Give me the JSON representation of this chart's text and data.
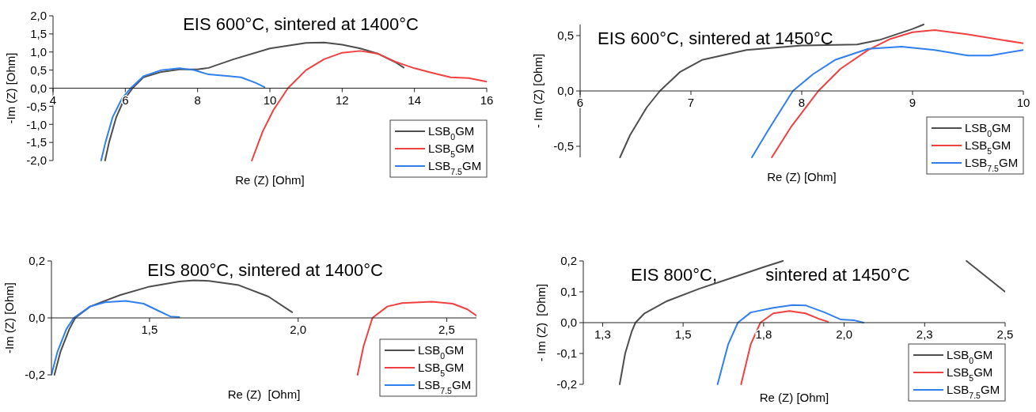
{
  "chart_data": [
    {
      "type": "line",
      "title": "EIS 600°C, sintered at 1400°C",
      "xlabel": "Re (Z) [Ohm]",
      "ylabel": "-Im (Z) [Ohm]",
      "xlim": [
        4,
        16
      ],
      "ylim": [
        -2,
        2
      ],
      "xticks": [
        4,
        6,
        8,
        10,
        12,
        14,
        16
      ],
      "yticks": [
        {
          "value": -2,
          "label": "-2,0"
        },
        {
          "value": -1.5,
          "label": "-1,5"
        },
        {
          "value": -1,
          "label": "-1,0"
        },
        {
          "value": -0.5,
          "label": "-0,5"
        },
        {
          "value": 0,
          "label": "0,0"
        },
        {
          "value": 0.5,
          "label": "0,5"
        },
        {
          "value": 1,
          "label": "1,0"
        },
        {
          "value": 1.5,
          "label": "1,5"
        },
        {
          "value": 2,
          "label": "2,0"
        }
      ],
      "grid": false,
      "legend": "bottom right",
      "line_style": "solid",
      "marker": "none",
      "series": [
        {
          "name": "LSB$_{0}$GM",
          "color": "#4d4d4d",
          "x": [
            5.44,
            5.55,
            5.75,
            5.95,
            6.2,
            6.5,
            7,
            7.5,
            8,
            8.3,
            9,
            10,
            11,
            11.5,
            12,
            12.5,
            13,
            13.5,
            13.7
          ],
          "values": [
            -2,
            -1.5,
            -0.8,
            -0.35,
            0,
            0.3,
            0.45,
            0.52,
            0.52,
            0.56,
            0.8,
            1.1,
            1.25,
            1.26,
            1.2,
            1.1,
            0.95,
            0.7,
            0.57
          ]
        },
        {
          "name": "LSB$_{5}$GM",
          "color": "#f04040",
          "x": [
            9.5,
            9.8,
            10.1,
            10.5,
            11,
            11.5,
            12,
            12.5,
            13,
            13.5,
            14,
            14.5,
            15,
            15.5,
            16
          ],
          "values": [
            -2,
            -1.2,
            -0.6,
            0,
            0.5,
            0.8,
            0.98,
            1.03,
            0.95,
            0.72,
            0.55,
            0.42,
            0.3,
            0.28,
            0.18
          ]
        },
        {
          "name": "LSB$_{7.5}$GM",
          "color": "#2f7fef",
          "x": [
            5.33,
            5.45,
            5.65,
            5.9,
            6.15,
            6.5,
            7,
            7.5,
            7.9,
            8.3,
            8.8,
            9.2,
            9.6,
            9.85
          ],
          "values": [
            -2,
            -1.5,
            -0.8,
            -0.3,
            0,
            0.33,
            0.5,
            0.55,
            0.5,
            0.38,
            0.34,
            0.3,
            0.15,
            0.03
          ]
        }
      ]
    },
    {
      "type": "line",
      "title": "EIS 600°C, sintered at 1450°C",
      "xlabel": "Re (Z) [Ohm]",
      "ylabel": "- Im (Z) [Ohm]",
      "xlim": [
        6,
        10
      ],
      "ylim": [
        -0.6,
        0.6
      ],
      "xticks": [
        6,
        7,
        8,
        9,
        10
      ],
      "yticks": [
        {
          "value": -0.5,
          "label": "-0,5"
        },
        {
          "value": 0,
          "label": "0,0"
        },
        {
          "value": 0.5,
          "label": "0,5"
        }
      ],
      "grid": false,
      "legend": "bottom right",
      "line_style": "solid",
      "marker": "none",
      "series": [
        {
          "name": "LSB$_{0}$GM",
          "color": "#4d4d4d",
          "x": [
            6.36,
            6.45,
            6.6,
            6.72,
            6.9,
            7.1,
            7.5,
            8,
            8.5,
            8.7,
            9,
            9.1
          ],
          "values": [
            -0.6,
            -0.4,
            -0.15,
            0,
            0.17,
            0.28,
            0.37,
            0.41,
            0.42,
            0.46,
            0.56,
            0.6
          ]
        },
        {
          "name": "LSB$_{5}$GM",
          "color": "#f04040",
          "x": [
            7.73,
            7.9,
            8.15,
            8.35,
            8.6,
            8.8,
            9,
            9.2,
            9.5,
            10
          ],
          "values": [
            -0.6,
            -0.33,
            0,
            0.2,
            0.37,
            0.47,
            0.53,
            0.55,
            0.51,
            0.43
          ]
        },
        {
          "name": "LSB$_{7.5}$GM",
          "color": "#2f7fef",
          "x": [
            7.55,
            7.7,
            7.92,
            8.1,
            8.3,
            8.6,
            8.9,
            9.2,
            9.5,
            9.7,
            10
          ],
          "values": [
            -0.6,
            -0.35,
            0,
            0.15,
            0.28,
            0.38,
            0.4,
            0.37,
            0.32,
            0.32,
            0.37
          ]
        }
      ]
    },
    {
      "type": "line",
      "title": "EIS 800°C, sintered at 1400°C",
      "xlabel": "Re (Z)  [Ohm]",
      "ylabel": "-Im (Z) [Ohm]",
      "xlim": [
        1.17,
        2.6
      ],
      "ylim": [
        -0.2,
        0.2
      ],
      "xticks": [
        {
          "value": 1.5,
          "label": "1,5"
        },
        {
          "value": 2,
          "label": "2,0"
        },
        {
          "value": 2.5,
          "label": "2,5"
        }
      ],
      "yticks": [
        {
          "value": -0.2,
          "label": "-0,2"
        },
        {
          "value": 0,
          "label": "0,0"
        },
        {
          "value": 0.2,
          "label": "0,2"
        }
      ],
      "grid": false,
      "legend": "bottom right",
      "line_style": "solid",
      "marker": "none",
      "series": [
        {
          "name": "LSB$_{0}$GM",
          "color": "#4d4d4d",
          "x": [
            1.18,
            1.2,
            1.23,
            1.25,
            1.3,
            1.4,
            1.5,
            1.6,
            1.65,
            1.7,
            1.8,
            1.9,
            1.98
          ],
          "values": [
            -0.2,
            -0.12,
            -0.04,
            0,
            0.04,
            0.08,
            0.11,
            0.128,
            0.132,
            0.13,
            0.115,
            0.075,
            0.02
          ]
        },
        {
          "name": "LSB$_{5}$GM",
          "color": "#f04040",
          "x": [
            2.2,
            2.22,
            2.25,
            2.3,
            2.35,
            2.45,
            2.52,
            2.57,
            2.6
          ],
          "values": [
            -0.2,
            -0.1,
            0,
            0.04,
            0.052,
            0.057,
            0.05,
            0.03,
            0.008
          ]
        },
        {
          "name": "LSB$_{7.5}$GM",
          "color": "#2f7fef",
          "x": [
            1.17,
            1.19,
            1.22,
            1.245,
            1.3,
            1.35,
            1.42,
            1.48,
            1.53,
            1.57,
            1.6
          ],
          "values": [
            -0.2,
            -0.12,
            -0.04,
            0,
            0.04,
            0.055,
            0.06,
            0.05,
            0.025,
            0.005,
            0.003
          ]
        }
      ]
    },
    {
      "type": "line",
      "title": "EIS 800°C,          sintered at 1450°C",
      "xlabel": "Re (Z) [Ohm]",
      "ylabel": "- Im (Z)  [Ohm]",
      "xlim": [
        1.19,
        2.5
      ],
      "ylim": [
        -0.2,
        0.2
      ],
      "xticks": [
        {
          "value": 1.25,
          "label": "1,3"
        },
        {
          "value": 1.5,
          "label": "1,5"
        },
        {
          "value": 1.75,
          "label": "1,8"
        },
        {
          "value": 2,
          "label": "2,0"
        },
        {
          "value": 2.25,
          "label": "2,3"
        },
        {
          "value": 2.5,
          "label": "2,5"
        }
      ],
      "yticks": [
        {
          "value": -0.2,
          "label": "-0,2"
        },
        {
          "value": -0.1,
          "label": "-0,1"
        },
        {
          "value": 0,
          "label": "0,0"
        },
        {
          "value": 0.1,
          "label": "0,1"
        },
        {
          "value": 0.2,
          "label": "0,2"
        }
      ],
      "grid": false,
      "legend": "bottom right",
      "line_style": "solid",
      "marker": "none",
      "series": [
        {
          "name": "LSB$_{0}$GM",
          "color": "#4d4d4d",
          "x": [
            1.303,
            1.32,
            1.34,
            1.352,
            1.38,
            1.45,
            1.55,
            1.65,
            1.75,
            1.81,
            2,
            2.38,
            2.44,
            2.5
          ],
          "values": [
            -0.2,
            -0.1,
            -0.03,
            0,
            0.03,
            0.07,
            0.11,
            0.145,
            0.18,
            0.2,
            null,
            0.2,
            0.15,
            0.1
          ]
        },
        {
          "name": "LSB$_{5}$GM",
          "color": "#f04040",
          "x": [
            1.68,
            1.71,
            1.74,
            1.78,
            1.83,
            1.88,
            1.92,
            1.95
          ],
          "values": [
            -0.2,
            -0.07,
            0,
            0.03,
            0.038,
            0.03,
            0.013,
            0.003
          ]
        },
        {
          "name": "LSB$_{7.5}$GM",
          "color": "#2f7fef",
          "x": [
            1.607,
            1.64,
            1.67,
            1.71,
            1.78,
            1.84,
            1.88,
            1.94,
            1.99,
            2.03,
            2.06
          ],
          "values": [
            -0.2,
            -0.07,
            0,
            0.033,
            0.048,
            0.057,
            0.056,
            0.033,
            0.01,
            0.008,
            0
          ]
        }
      ]
    }
  ]
}
